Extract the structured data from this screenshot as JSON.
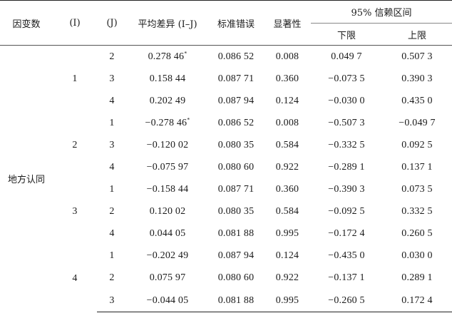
{
  "headers": {
    "dependent_var": "因变数",
    "i": "(I)",
    "j": "(J)",
    "mean_diff": "平均差异 (I–J)",
    "std_error": "标准错误",
    "significance": "显著性",
    "ci": "95% 信赖区间",
    "lower": "下限",
    "upper": "上限"
  },
  "dependent_var_value": "地方认同",
  "groups": [
    {
      "i": "1",
      "rows": [
        {
          "j": "2",
          "mean_diff": "0.278 46",
          "star": "*",
          "std_error": "0.086 52",
          "sig": "0.008",
          "lower": "0.049 7",
          "upper": "0.507 3"
        },
        {
          "j": "3",
          "mean_diff": "0.158 44",
          "star": "",
          "std_error": "0.087 71",
          "sig": "0.360",
          "lower": "−0.073 5",
          "upper": "0.390 3"
        },
        {
          "j": "4",
          "mean_diff": "0.202 49",
          "star": "",
          "std_error": "0.087 94",
          "sig": "0.124",
          "lower": "−0.030 0",
          "upper": "0.435 0"
        }
      ]
    },
    {
      "i": "2",
      "rows": [
        {
          "j": "1",
          "mean_diff": "−0.278 46",
          "star": "*",
          "std_error": "0.086 52",
          "sig": "0.008",
          "lower": "−0.507 3",
          "upper": "−0.049 7"
        },
        {
          "j": "3",
          "mean_diff": "−0.120 02",
          "star": "",
          "std_error": "0.080 35",
          "sig": "0.584",
          "lower": "−0.332 5",
          "upper": "0.092 5"
        },
        {
          "j": "4",
          "mean_diff": "−0.075 97",
          "star": "",
          "std_error": "0.080 60",
          "sig": "0.922",
          "lower": "−0.289 1",
          "upper": "0.137 1"
        }
      ]
    },
    {
      "i": "3",
      "rows": [
        {
          "j": "1",
          "mean_diff": "−0.158 44",
          "star": "",
          "std_error": "0.087 71",
          "sig": "0.360",
          "lower": "−0.390 3",
          "upper": "0.073 5"
        },
        {
          "j": "2",
          "mean_diff": "0.120 02",
          "star": "",
          "std_error": "0.080 35",
          "sig": "0.584",
          "lower": "−0.092 5",
          "upper": "0.332 5"
        },
        {
          "j": "4",
          "mean_diff": "0.044 05",
          "star": "",
          "std_error": "0.081 88",
          "sig": "0.995",
          "lower": "−0.172 4",
          "upper": "0.260 5"
        }
      ]
    },
    {
      "i": "4",
      "rows": [
        {
          "j": "1",
          "mean_diff": "−0.202 49",
          "star": "",
          "std_error": "0.087 94",
          "sig": "0.124",
          "lower": "−0.435 0",
          "upper": "0.030 0"
        },
        {
          "j": "2",
          "mean_diff": "0.075 97",
          "star": "",
          "std_error": "0.080 60",
          "sig": "0.922",
          "lower": "−0.137 1",
          "upper": "0.289 1"
        },
        {
          "j": "3",
          "mean_diff": "−0.044 05",
          "star": "",
          "std_error": "0.081 88",
          "sig": "0.995",
          "lower": "−0.260 5",
          "upper": "0.172 4"
        }
      ]
    }
  ]
}
